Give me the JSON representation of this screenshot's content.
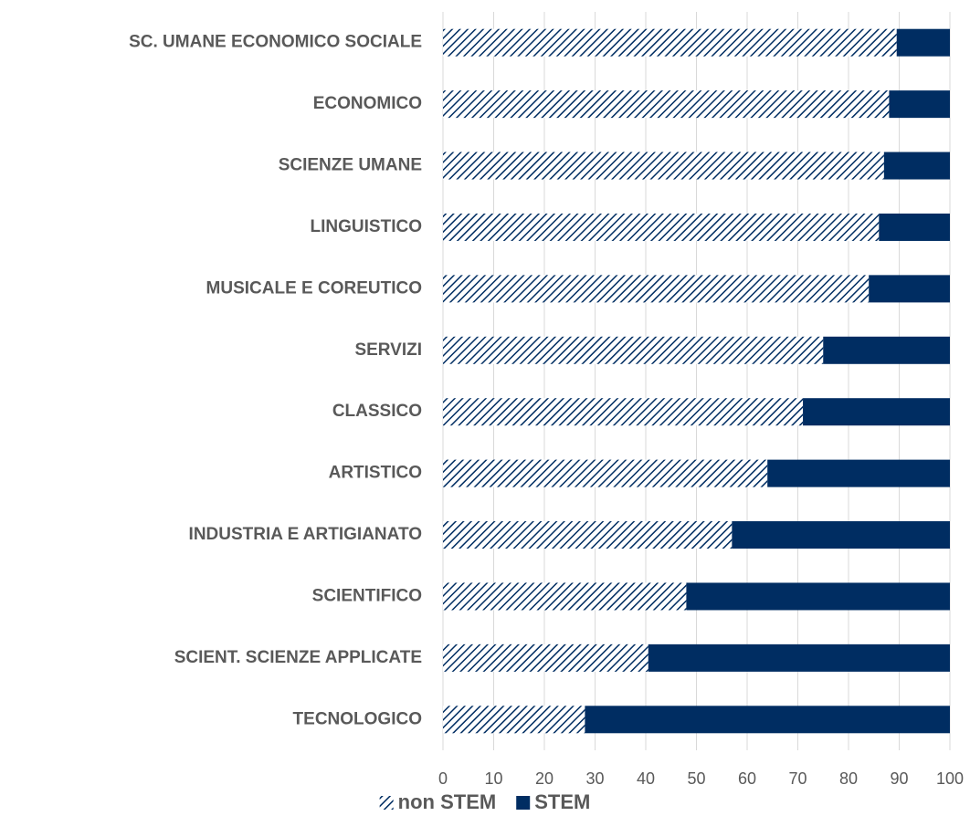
{
  "chart_data": {
    "type": "stacked_barh",
    "categories": [
      "SC. UMANE ECONOMICO SOCIALE",
      "ECONOMICO",
      "SCIENZE UMANE",
      "LINGUISTICO",
      "MUSICALE E COREUTICO",
      "SERVIZI",
      "CLASSICO",
      "ARTISTICO",
      "INDUSTRIA E ARTIGIANATO",
      "SCIENTIFICO",
      "SCIENT. SCIENZE APPLICATE",
      "TECNOLOGICO"
    ],
    "series": [
      {
        "name": "non STEM",
        "color": "#002d62",
        "pattern": "hatch",
        "values": [
          89.5,
          88,
          87,
          86,
          84,
          75,
          71,
          64,
          57,
          48,
          40.5,
          28
        ]
      },
      {
        "name": "STEM",
        "color": "#002d62",
        "values": [
          10.5,
          12,
          13,
          14,
          16,
          25,
          29,
          36,
          43,
          52,
          59.5,
          72
        ]
      }
    ],
    "xlim": [
      0,
      100
    ],
    "xticks": [
      0,
      10,
      20,
      30,
      40,
      50,
      60,
      70,
      80,
      90,
      100
    ],
    "grid": true,
    "legend": "bottom"
  }
}
